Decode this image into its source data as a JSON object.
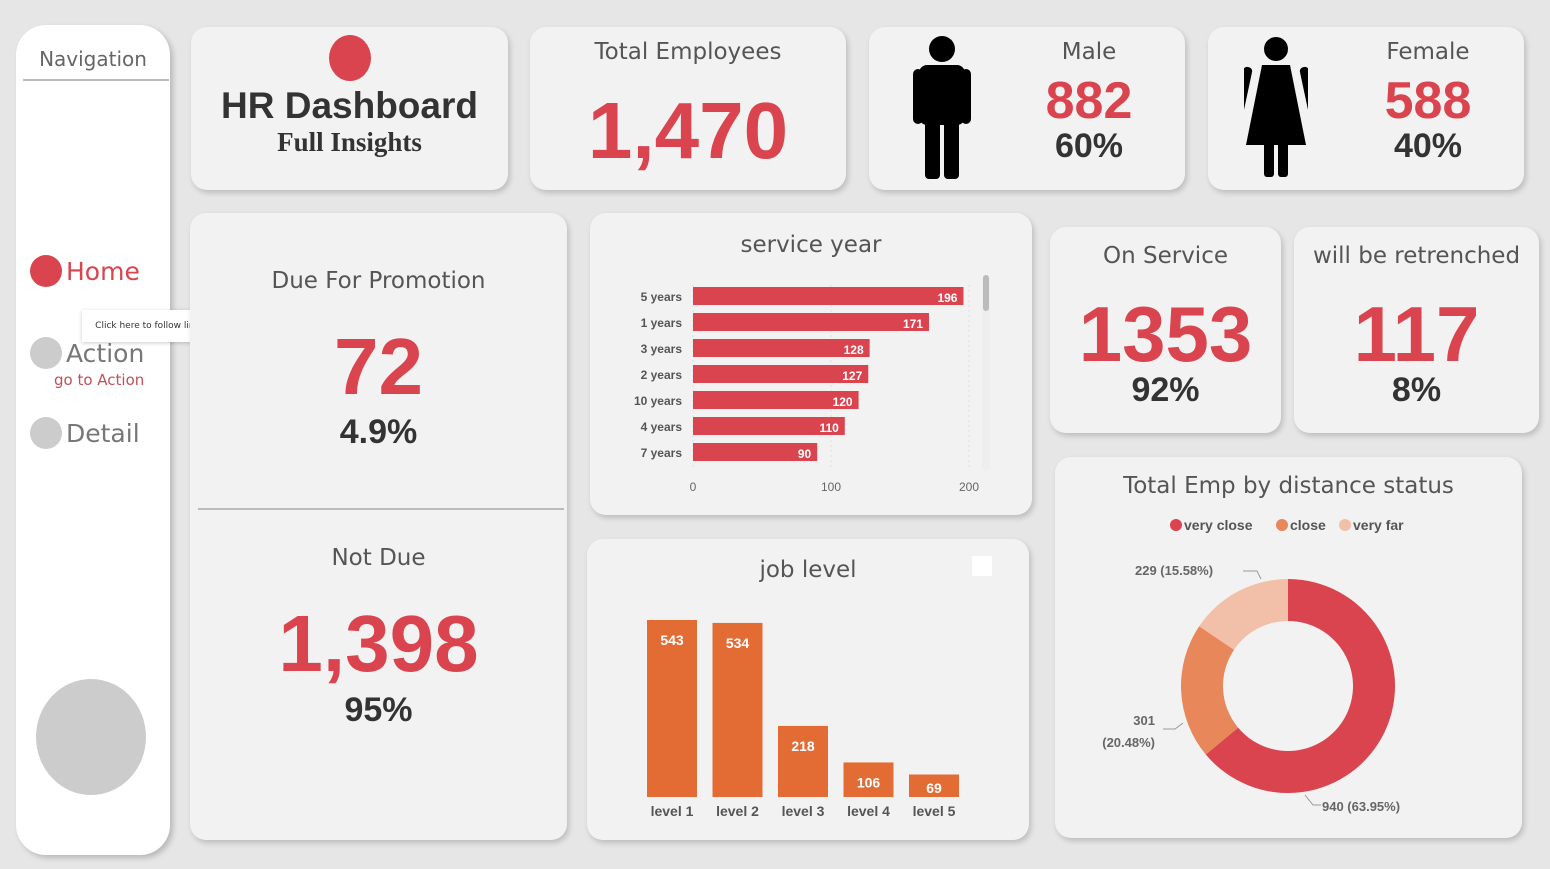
{
  "colors": {
    "accent": "#d9444f",
    "orange": "#e36c35",
    "close": "#e8875a",
    "very_far": "#f2c0a8"
  },
  "nav": {
    "title": "Navigation",
    "items": [
      {
        "label": "Home",
        "active": true
      },
      {
        "label": "Action",
        "sub": "go to Action"
      },
      {
        "label": "Detail"
      }
    ],
    "tooltip": "Click here to follow link"
  },
  "header": {
    "title": "HR Dashboard",
    "subtitle": "Full Insights"
  },
  "total": {
    "label": "Total Employees",
    "value": "1,470"
  },
  "male": {
    "label": "Male",
    "value": "882",
    "pct": "60%",
    "icon": "male-person-icon"
  },
  "female": {
    "label": "Female",
    "value": "588",
    "pct": "40%",
    "icon": "female-person-icon"
  },
  "promotion": {
    "label": "Due For Promotion",
    "value": "72",
    "pct": "4.9%",
    "not_label": "Not Due",
    "not_value": "1,398",
    "not_pct": "95%"
  },
  "on_service": {
    "label": "On Service",
    "value": "1353",
    "pct": "92%"
  },
  "retrenched": {
    "label": "will be retrenched",
    "value": "117",
    "pct": "8%"
  },
  "chart_data": [
    {
      "type": "bar",
      "orientation": "horizontal",
      "title": "service year",
      "categories": [
        "5 years",
        "1 years",
        "3 years",
        "2 years",
        "10 years",
        "4 years",
        "7 years"
      ],
      "values": [
        196,
        171,
        128,
        127,
        120,
        110,
        90
      ],
      "xlim": [
        0,
        200
      ],
      "xticks": [
        "0",
        "100",
        "200"
      ]
    },
    {
      "type": "bar",
      "title": "job level",
      "categories": [
        "level 1",
        "level 2",
        "level 3",
        "level 4",
        "level 5"
      ],
      "values": [
        543,
        534,
        218,
        106,
        69
      ]
    },
    {
      "type": "pie",
      "donut": true,
      "title": "Total Emp by distance status",
      "legend": "top",
      "categories": [
        "very close",
        "close",
        "very far"
      ],
      "values": [
        940,
        301,
        229
      ],
      "labels": [
        "940 (63.95%)",
        "301 (20.48%)",
        "229 (15.58%)"
      ]
    }
  ]
}
